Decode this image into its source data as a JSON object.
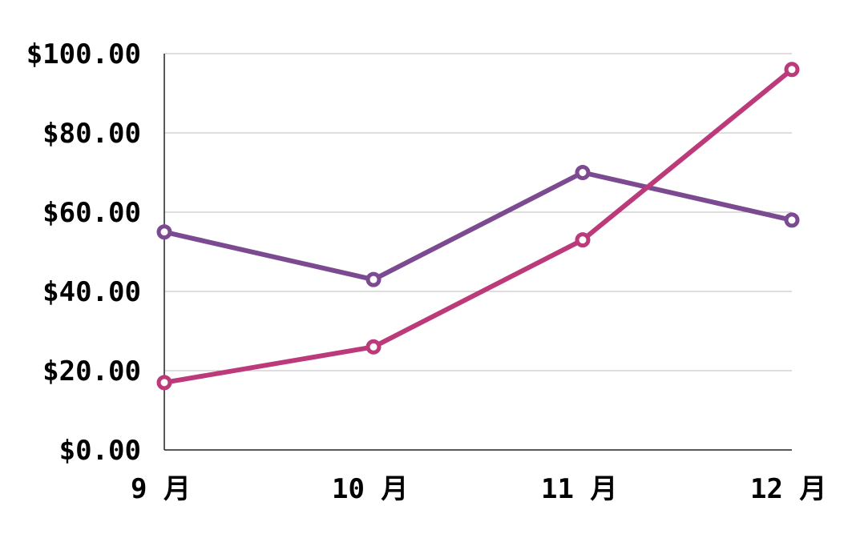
{
  "chart_data": {
    "type": "line",
    "categories": [
      "9 月",
      "10 月",
      "11 月",
      "12 月"
    ],
    "y_ticks": [
      "$0.00",
      "$20.00",
      "$40.00",
      "$60.00",
      "$80.00",
      "$100.00"
    ],
    "ylim": [
      0,
      100
    ],
    "grid": true,
    "legend": "none",
    "series": [
      {
        "color": "#7b4a91",
        "values": [
          55,
          43,
          70,
          58
        ]
      },
      {
        "color": "#bc3a7a",
        "values": [
          17,
          26,
          53,
          96
        ]
      }
    ]
  }
}
